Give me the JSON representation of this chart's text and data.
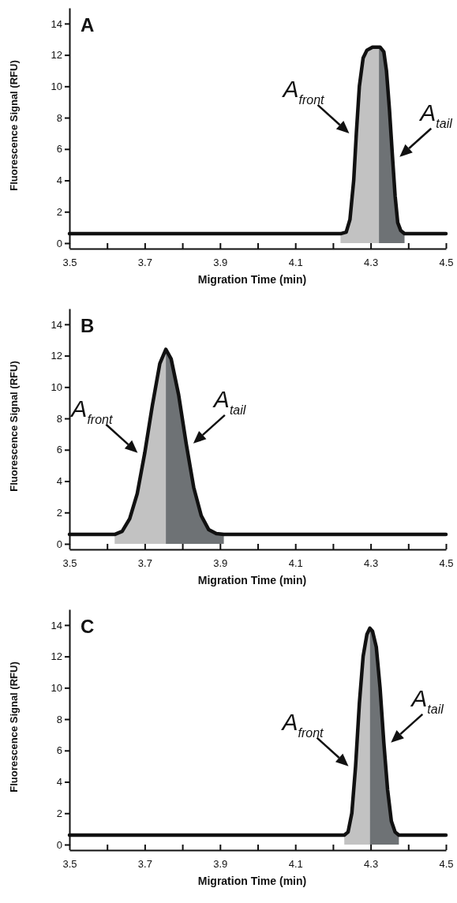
{
  "chart_data": [
    {
      "type": "line",
      "title": "A",
      "xlabel": "Migration Time (min)",
      "ylabel": "Fluorescence Signal (RFU)",
      "xlim": [
        3.5,
        4.5
      ],
      "ylim": [
        0,
        15
      ],
      "xticks": [
        3.5,
        {
          "value": 3.6,
          "label": null
        },
        3.7,
        {
          "value": 3.8,
          "label": null
        },
        3.9,
        {
          "value": 4.0,
          "label": null
        },
        4.1,
        {
          "value": 4.2,
          "label": null
        },
        4.3,
        {
          "value": 4.4,
          "label": null
        },
        4.5
      ],
      "yticks": [
        0,
        2,
        4,
        6,
        8,
        10,
        12,
        14
      ],
      "series": [
        {
          "type": "area",
          "color": "#c2c2c2",
          "x": [
            4.22,
            4.235,
            4.245,
            4.255,
            4.262,
            4.27,
            4.28,
            4.29,
            4.305,
            4.322
          ],
          "values": [
            0.6,
            0.7,
            1.5,
            4,
            7,
            10,
            11.8,
            12.3,
            12.5,
            12.5
          ]
        },
        {
          "type": "area",
          "color": "#6e7275",
          "x": [
            4.322,
            4.325,
            4.335,
            4.342,
            4.35,
            4.358,
            4.365,
            4.372,
            4.38,
            4.39
          ],
          "values": [
            12.5,
            12.5,
            12.2,
            11,
            8.5,
            5.5,
            3,
            1.3,
            0.8,
            0.6
          ]
        },
        {
          "color": "#111111",
          "x": [
            3.5,
            4.22,
            4.235,
            4.245,
            4.255,
            4.262,
            4.27,
            4.28,
            4.29,
            4.305,
            4.325,
            4.335,
            4.342,
            4.35,
            4.358,
            4.365,
            4.372,
            4.38,
            4.39,
            4.5
          ],
          "values": [
            0.6,
            0.6,
            0.7,
            1.5,
            4,
            7,
            10,
            11.8,
            12.3,
            12.5,
            12.5,
            12.2,
            11,
            8.5,
            5.5,
            3,
            1.3,
            0.8,
            0.6,
            0.6
          ]
        }
      ],
      "annotations": [
        {
          "text": "A$_{front}$",
          "x": 4.262,
          "y": 7
        },
        {
          "text": "A$_{tail}$",
          "x": 4.358,
          "y": 5.5
        }
      ]
    },
    {
      "type": "line",
      "title": "B",
      "xlabel": "Migration Time (min)",
      "ylabel": "Fluorescence Signal (RFU)",
      "xlim": [
        3.5,
        4.5
      ],
      "ylim": [
        0,
        15
      ],
      "xticks": [
        3.5,
        {
          "value": 3.6,
          "label": null
        },
        3.7,
        {
          "value": 3.8,
          "label": null
        },
        3.9,
        {
          "value": 4.0,
          "label": null
        },
        4.1,
        {
          "value": 4.2,
          "label": null
        },
        4.3,
        {
          "value": 4.4,
          "label": null
        },
        4.5
      ],
      "yticks": [
        0,
        2,
        4,
        6,
        8,
        10,
        12,
        14
      ],
      "series": [
        {
          "type": "area",
          "color": "#c2c2c2",
          "x": [
            3.62,
            3.64,
            3.66,
            3.68,
            3.7,
            3.72,
            3.74,
            3.756
          ],
          "values": [
            0.6,
            0.8,
            1.6,
            3.2,
            5.8,
            8.8,
            11.5,
            12.4
          ]
        },
        {
          "type": "area",
          "color": "#6e7275",
          "x": [
            3.756,
            3.77,
            3.79,
            3.81,
            3.83,
            3.85,
            3.87,
            3.89,
            3.91
          ],
          "values": [
            12.4,
            11.8,
            9.5,
            6.4,
            3.6,
            1.8,
            0.9,
            0.65,
            0.6
          ]
        },
        {
          "color": "#111111",
          "x": [
            3.5,
            3.62,
            3.64,
            3.66,
            3.68,
            3.7,
            3.72,
            3.74,
            3.756,
            3.77,
            3.79,
            3.81,
            3.83,
            3.85,
            3.87,
            3.89,
            3.91,
            4.5
          ],
          "values": [
            0.6,
            0.6,
            0.8,
            1.6,
            3.2,
            5.8,
            8.8,
            11.5,
            12.4,
            11.8,
            9.5,
            6.4,
            3.6,
            1.8,
            0.9,
            0.65,
            0.6,
            0.6
          ]
        }
      ],
      "annotations": [
        {
          "text": "A$_{front}$",
          "x": 3.7,
          "y": 5.8
        },
        {
          "text": "A$_{tail}$",
          "x": 3.81,
          "y": 6.4
        }
      ]
    },
    {
      "type": "line",
      "title": "C",
      "xlabel": "Migration Time (min)",
      "ylabel": "Fluorescence Signal (RFU)",
      "xlim": [
        3.5,
        4.5
      ],
      "ylim": [
        0,
        15
      ],
      "xticks": [
        3.5,
        {
          "value": 3.6,
          "label": null
        },
        3.7,
        {
          "value": 3.8,
          "label": null
        },
        3.9,
        {
          "value": 4.0,
          "label": null
        },
        4.1,
        {
          "value": 4.2,
          "label": null
        },
        4.3,
        {
          "value": 4.4,
          "label": null
        },
        4.5
      ],
      "yticks": [
        0,
        2,
        4,
        6,
        8,
        10,
        12,
        14
      ],
      "series": [
        {
          "type": "area",
          "color": "#c2c2c2",
          "x": [
            4.23,
            4.24,
            4.25,
            4.26,
            4.27,
            4.28,
            4.29,
            4.298
          ],
          "values": [
            0.6,
            0.8,
            2,
            5,
            9,
            12,
            13.4,
            13.8
          ]
        },
        {
          "type": "area",
          "color": "#6e7275",
          "x": [
            4.298,
            4.305,
            4.315,
            4.325,
            4.335,
            4.345,
            4.355,
            4.365,
            4.375
          ],
          "values": [
            13.8,
            13.6,
            12.6,
            10,
            6.5,
            3.5,
            1.5,
            0.8,
            0.6
          ]
        },
        {
          "color": "#111111",
          "x": [
            3.5,
            4.23,
            4.24,
            4.25,
            4.26,
            4.27,
            4.28,
            4.29,
            4.298,
            4.305,
            4.315,
            4.325,
            4.335,
            4.345,
            4.355,
            4.365,
            4.375,
            4.5
          ],
          "values": [
            0.6,
            0.6,
            0.8,
            2,
            5,
            9,
            12,
            13.4,
            13.8,
            13.6,
            12.6,
            10,
            6.5,
            3.5,
            1.5,
            0.8,
            0.6,
            0.6
          ]
        }
      ],
      "annotations": [
        {
          "text": "A$_{front}$",
          "x": 4.26,
          "y": 5
        },
        {
          "text": "A$_{tail}$",
          "x": 4.335,
          "y": 6.5
        }
      ]
    }
  ]
}
